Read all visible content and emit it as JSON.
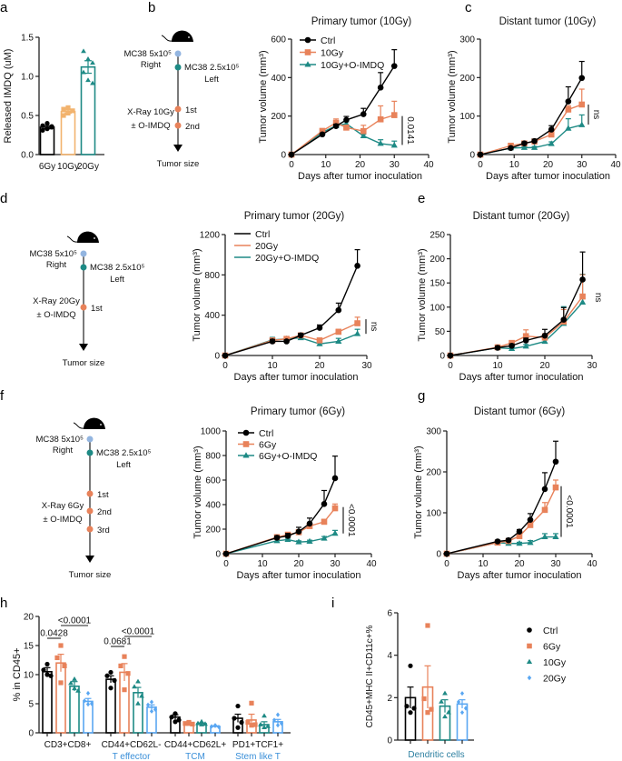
{
  "panel_letters": {
    "a": "a",
    "b": "b",
    "c": "c",
    "d": "d",
    "e": "e",
    "f": "f",
    "g": "g",
    "h": "h",
    "i": "i"
  },
  "colors": {
    "ctrl": "#000000",
    "orange": "#E8825A",
    "light_orange": "#F2B36E",
    "teal": "#1E8A85",
    "blue": "#5AA7F2",
    "schema_blue": "#93B5E0",
    "category_blue": "#3A8FD8",
    "dc_blue": "#2C7FA0"
  },
  "schematics": {
    "b": {
      "inj1": "MC38 5x10⁵",
      "inj1_side": "Right",
      "inj2": "MC38 2.5x10⁵",
      "inj2_side": "Left",
      "xray": "X-Ray 10Gy",
      "drug": "± O-IMDQ",
      "doses": [
        "1st",
        "2nd"
      ],
      "end": "Tumor size"
    },
    "d": {
      "inj1": "MC38 5x10⁵",
      "inj1_side": "Right",
      "inj2": "MC38 2.5x10⁵",
      "inj2_side": "Left",
      "xray": "X-Ray 20Gy",
      "drug": "± O-IMDQ",
      "doses": [
        "1st"
      ],
      "end": "Tumor size"
    },
    "f": {
      "inj1": "MC38 5x10⁵",
      "inj1_side": "Right",
      "inj2": "MC38 2.5x10⁵",
      "inj2_side": "Left",
      "xray": "X-Ray 6Gy",
      "drug": "± O-IMDQ",
      "doses": [
        "1st",
        "2nd",
        "3rd"
      ],
      "end": "Tumor size"
    }
  },
  "chart_data": [
    {
      "id": "a",
      "type": "bar",
      "ylabel": "Released IMDQ (uM)",
      "ylim": [
        0,
        1.5
      ],
      "yticks": [
        "0.0",
        "0.5",
        "1.0",
        "1.5"
      ],
      "categories": [
        "6Gy",
        "10Gy",
        "20Gy"
      ],
      "values": [
        0.35,
        0.55,
        1.12
      ],
      "errors": [
        0.02,
        0.02,
        0.08
      ],
      "points": [
        [
          0.31,
          0.33,
          0.35,
          0.37,
          0.4,
          0.36
        ],
        [
          0.5,
          0.53,
          0.56,
          0.58,
          0.6
        ],
        [
          1.32,
          1.22,
          1.17,
          1.05,
          0.95,
          0.91
        ]
      ],
      "series_colors": [
        "ctrl",
        "light_orange",
        "teal"
      ],
      "markers": [
        "circle",
        "square",
        "triangle"
      ]
    },
    {
      "id": "b",
      "type": "line",
      "title": "Primary tumor (10Gy)",
      "xlabel": "Days after tumor inoculation",
      "ylabel": "Tumor volume (mm³)",
      "xlim": [
        0,
        40
      ],
      "ylim": [
        0,
        600
      ],
      "xticks": [
        0,
        10,
        20,
        30,
        40
      ],
      "yticks": [
        0,
        200,
        400,
        600
      ],
      "x": [
        0,
        9,
        13,
        16,
        21,
        26,
        30
      ],
      "series": [
        {
          "name": "Ctrl",
          "color": "ctrl",
          "marker": "circle",
          "values": [
            0,
            105,
            148,
            180,
            210,
            348,
            460
          ],
          "errors": [
            0,
            6,
            10,
            18,
            30,
            78,
            85
          ]
        },
        {
          "name": "10Gy",
          "color": "orange",
          "marker": "square",
          "values": [
            0,
            123,
            165,
            140,
            122,
            183,
            205
          ],
          "errors": [
            0,
            8,
            20,
            12,
            30,
            70,
            72
          ]
        },
        {
          "name": "10Gy+O-IMDQ",
          "color": "teal",
          "marker": "triangle",
          "values": [
            0,
            115,
            150,
            160,
            97,
            57,
            48
          ],
          "errors": [
            0,
            6,
            10,
            10,
            8,
            20,
            22
          ]
        }
      ],
      "legend": "top-left",
      "annotation": {
        "text": "0.0141",
        "from": 50,
        "to": 200
      }
    },
    {
      "id": "c",
      "type": "line",
      "title": "Distant tumor (10Gy)",
      "xlabel": "Days after tumor inoculation",
      "ylabel": "Tumor volume (mm³)",
      "xlim": [
        0,
        40
      ],
      "ylim": [
        0,
        300
      ],
      "xticks": [
        0,
        10,
        20,
        30,
        40
      ],
      "yticks": [
        0,
        100,
        200,
        300
      ],
      "x": [
        0,
        9,
        13,
        16,
        21,
        26,
        30
      ],
      "series": [
        {
          "name": "Ctrl",
          "color": "ctrl",
          "marker": "circle",
          "values": [
            0,
            17,
            29,
            35,
            65,
            138,
            199
          ],
          "errors": [
            0,
            3,
            4,
            5,
            10,
            38,
            43
          ]
        },
        {
          "name": "10Gy",
          "color": "orange",
          "marker": "square",
          "values": [
            0,
            23,
            29,
            34,
            52,
            117,
            130
          ],
          "errors": [
            0,
            3,
            4,
            5,
            8,
            10,
            40
          ]
        },
        {
          "name": "10Gy+O-IMDQ",
          "color": "teal",
          "marker": "triangle",
          "values": [
            0,
            17,
            18,
            18,
            28,
            68,
            77
          ],
          "errors": [
            0,
            2,
            3,
            3,
            5,
            25,
            26
          ]
        }
      ],
      "annotation": {
        "text": "ns",
        "from": 78,
        "to": 130
      }
    },
    {
      "id": "d",
      "type": "line",
      "title": "Primary tumor  (20Gy)",
      "xlabel": "Days after tumor inoculation",
      "ylabel": "Tumor volume (mm³)",
      "xlim": [
        0,
        30
      ],
      "ylim": [
        0,
        1200
      ],
      "xticks": [
        0,
        10,
        20,
        30
      ],
      "yticks": [
        0,
        400,
        800,
        1200
      ],
      "x": [
        0,
        10,
        13,
        16,
        20,
        24,
        28
      ],
      "series": [
        {
          "name": "Ctrl",
          "color": "ctrl",
          "marker": "circle",
          "values": [
            0,
            140,
            140,
            200,
            275,
            450,
            890
          ],
          "errors": [
            0,
            20,
            15,
            20,
            28,
            70,
            160
          ]
        },
        {
          "name": "20Gy",
          "color": "orange",
          "marker": "square",
          "values": [
            0,
            150,
            165,
            200,
            150,
            235,
            320
          ],
          "errors": [
            0,
            20,
            20,
            15,
            20,
            25,
            60
          ]
        },
        {
          "name": "20Gy+O-IMDQ",
          "color": "teal",
          "marker": "triangle",
          "values": [
            0,
            155,
            165,
            175,
            115,
            140,
            215
          ],
          "errors": [
            0,
            25,
            20,
            15,
            15,
            30,
            45
          ]
        }
      ],
      "legend_lines_only": true,
      "annotation": {
        "text": "ns",
        "from": 215,
        "to": 360
      }
    },
    {
      "id": "e",
      "type": "line",
      "title": "Distant tumor (20Gy)",
      "xlabel": "Days after tumor inoculation",
      "ylabel": "Tumor volume (mm³)",
      "xlim": [
        0,
        30
      ],
      "ylim": [
        0,
        250
      ],
      "xticks": [
        0,
        10,
        20,
        30
      ],
      "yticks": [
        0,
        50,
        100,
        150,
        200,
        250
      ],
      "x": [
        0,
        10,
        13,
        16,
        20,
        24,
        28
      ],
      "series": [
        {
          "name": "Ctrl",
          "color": "ctrl",
          "marker": "circle",
          "values": [
            0,
            16,
            20,
            31,
            41,
            74,
            157
          ],
          "errors": [
            0,
            3,
            4,
            5,
            13,
            25,
            57
          ]
        },
        {
          "name": "20Gy",
          "color": "orange",
          "marker": "square",
          "values": [
            0,
            17,
            26,
            40,
            37,
            70,
            122
          ],
          "errors": [
            0,
            3,
            4,
            13,
            8,
            25,
            45
          ]
        },
        {
          "name": "20Gy+O-IMDQ",
          "color": "teal",
          "marker": "triangle",
          "values": [
            0,
            16,
            14,
            19,
            29,
            66,
            110
          ],
          "errors": [
            0,
            2,
            3,
            4,
            5,
            35,
            58
          ]
        }
      ],
      "annotation": {
        "text": "ns",
        "from": null,
        "to": null
      }
    },
    {
      "id": "f",
      "type": "line",
      "title": "Primary tumor (6Gy)",
      "xlabel": "Days after tumor inoculation",
      "ylabel": "Tumor volume (mm³)",
      "xlim": [
        0,
        40
      ],
      "ylim": [
        0,
        1000
      ],
      "xticks": [
        0,
        10,
        20,
        30,
        40
      ],
      "yticks": [
        0,
        200,
        400,
        600,
        800,
        1000
      ],
      "x": [
        0,
        14,
        17,
        20,
        23,
        27,
        30
      ],
      "series": [
        {
          "name": "Ctrl",
          "color": "ctrl",
          "marker": "circle",
          "values": [
            0,
            130,
            145,
            180,
            245,
            405,
            615
          ],
          "errors": [
            0,
            15,
            20,
            35,
            45,
            110,
            180
          ]
        },
        {
          "name": "6Gy",
          "color": "orange",
          "marker": "square",
          "values": [
            0,
            135,
            155,
            175,
            225,
            260,
            370
          ],
          "errors": [
            0,
            10,
            15,
            20,
            20,
            20,
            35
          ]
        },
        {
          "name": "6Gy+O-IMDQ",
          "color": "teal",
          "marker": "triangle",
          "values": [
            0,
            105,
            115,
            95,
            100,
            125,
            165
          ],
          "errors": [
            0,
            10,
            10,
            10,
            10,
            15,
            25
          ]
        }
      ],
      "annotation": {
        "text": "<0.0001",
        "from": 165,
        "to": 380
      }
    },
    {
      "id": "g",
      "type": "line",
      "title": "Distant tumor (6Gy)",
      "xlabel": "Days after tumor inoculation",
      "ylabel": "Tumor volume (mm³)",
      "xlim": [
        0,
        40
      ],
      "ylim": [
        0,
        300
      ],
      "xticks": [
        0,
        10,
        20,
        30,
        40
      ],
      "yticks": [
        0,
        100,
        200,
        300
      ],
      "x": [
        0,
        14,
        17,
        20,
        23,
        27,
        30
      ],
      "series": [
        {
          "name": "Ctrl",
          "color": "ctrl",
          "marker": "circle",
          "values": [
            0,
            30,
            33,
            54,
            83,
            158,
            225
          ],
          "errors": [
            0,
            3,
            4,
            5,
            15,
            40,
            50
          ]
        },
        {
          "name": "6Gy",
          "color": "orange",
          "marker": "square",
          "values": [
            0,
            27,
            31,
            43,
            70,
            107,
            162
          ],
          "errors": [
            0,
            3,
            4,
            5,
            6,
            18,
            18
          ]
        },
        {
          "name": "6Gy+O-IMDQ",
          "color": "teal",
          "marker": "triangle",
          "values": [
            0,
            27,
            25,
            25,
            27,
            41,
            41
          ],
          "errors": [
            0,
            3,
            3,
            3,
            5,
            8,
            8
          ]
        }
      ],
      "annotation": {
        "text": "<0.0001",
        "from": 41,
        "to": 165
      }
    },
    {
      "id": "h",
      "type": "bar",
      "ylabel": "% in CD45+",
      "ylim": [
        0,
        20
      ],
      "yticks": [
        "0",
        "5",
        "10",
        "15",
        "20"
      ],
      "groups": [
        {
          "label": "CD3+CD8+",
          "sublabel": "",
          "values": [
            10.5,
            12.0,
            8.0,
            5.4
          ],
          "errors": [
            0.7,
            1.5,
            0.8,
            0.5
          ],
          "points": [
            [
              11.8,
              10.8,
              9.8,
              10.0
            ],
            [
              15,
              12.9,
              11.5,
              8.6
            ],
            [
              9.2,
              8.5,
              7.2,
              7.6
            ],
            [
              6.8,
              5.5,
              5.0,
              4.9
            ]
          ]
        },
        {
          "label": "CD44+CD62L-",
          "sublabel": "T effector",
          "values": [
            9.2,
            10.4,
            6.9,
            4.4
          ],
          "errors": [
            0.6,
            1.5,
            0.9,
            0.4
          ],
          "points": [
            [
              10.4,
              9.8,
              9.0,
              7.7
            ],
            [
              13.1,
              11.5,
              10.2,
              7.4
            ],
            [
              8.8,
              7.9,
              6.3,
              5.0
            ],
            [
              5.3,
              4.8,
              4.0,
              3.7
            ]
          ]
        },
        {
          "label": "CD44+CD62L+",
          "sublabel": "TCM",
          "values": [
            2.7,
            1.6,
            1.6,
            1.1
          ],
          "errors": [
            0.4,
            0.1,
            0.1,
            0.1
          ],
          "points": [
            [
              3.3,
              2.7,
              2.2,
              1.9
            ],
            [
              1.8,
              1.6,
              1.5,
              1.6
            ],
            [
              1.9,
              1.6,
              1.5,
              1.4
            ],
            [
              1.3,
              1.1,
              1.0,
              1.2
            ]
          ]
        },
        {
          "label": "PD1+TCF1+",
          "sublabel": "Stem like T",
          "values": [
            2.5,
            2.2,
            1.4,
            1.9
          ],
          "errors": [
            0.7,
            1.0,
            0.5,
            0.4
          ],
          "points": [
            [
              4.6,
              2.5,
              1.8,
              0.9
            ],
            [
              5.1,
              1.8,
              1.4,
              1.3
            ],
            [
              2.9,
              1.4,
              1.1,
              0.9
            ],
            [
              3.1,
              2.2,
              1.6,
              1.3
            ]
          ]
        }
      ],
      "series_colors": [
        "ctrl",
        "orange",
        "teal",
        "blue"
      ],
      "markers": [
        "circle",
        "square",
        "triangle",
        "diamond"
      ],
      "annotations": [
        {
          "text": "<0.0001",
          "g": 0,
          "a": 1,
          "b": 3,
          "level": 2
        },
        {
          "text": "0.0428",
          "g": 0,
          "a": 0,
          "b": 1,
          "level": 1
        },
        {
          "text": "0.0681",
          "g": 1,
          "a": 0,
          "b": 1,
          "level": 0
        },
        {
          "text": "<0.0001",
          "g": 1,
          "a": 1,
          "b": 3,
          "level": 1
        }
      ]
    },
    {
      "id": "i",
      "type": "bar",
      "ylabel": "CD45+MHC II+CD11c+%",
      "ylim": [
        0,
        6
      ],
      "yticks": [
        "0",
        "2",
        "4",
        "6"
      ],
      "groups": [
        {
          "label": "Dendritic cells",
          "values": [
            2.0,
            2.5,
            1.6,
            1.7
          ],
          "errors": [
            0.5,
            1.0,
            0.3,
            0.2
          ],
          "points": [
            [
              3.5,
              1.6,
              1.5,
              1.3
            ],
            [
              5.4,
              1.95,
              1.45,
              1.3
            ],
            [
              2.2,
              1.8,
              1.3,
              1.1
            ],
            [
              2.2,
              1.8,
              1.5,
              1.3
            ]
          ]
        }
      ],
      "series_colors": [
        "ctrl",
        "orange",
        "teal",
        "blue"
      ],
      "markers": [
        "circle",
        "square",
        "triangle",
        "diamond"
      ],
      "legend": {
        "position": "right",
        "entries": [
          "Ctrl",
          "6Gy",
          "10Gy",
          "20Gy"
        ]
      }
    }
  ]
}
